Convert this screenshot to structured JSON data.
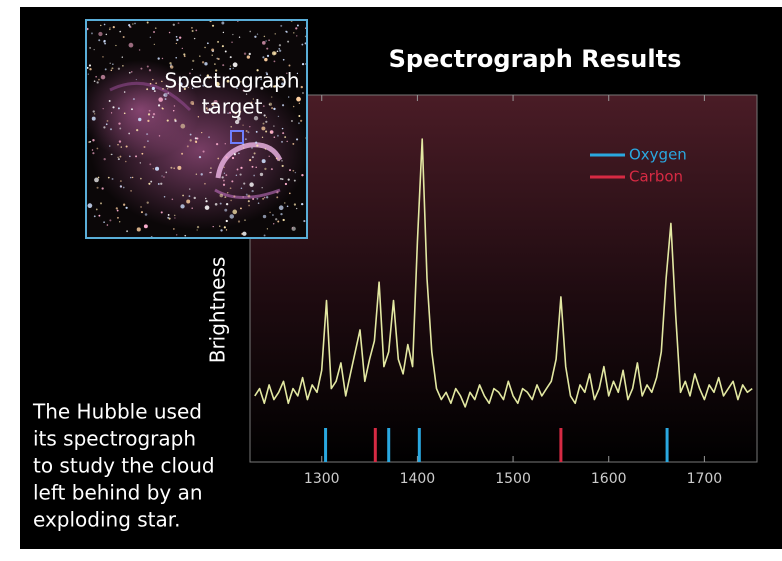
{
  "chart_data": {
    "type": "line",
    "title": "Spectrograph Results",
    "y_label": "Brightness",
    "inset_label": [
      "Spectrograph",
      "target"
    ],
    "caption": [
      "The Hubble used",
      "its spectrograph",
      "to study the cloud",
      "left behind by an",
      "exploding star."
    ],
    "xlim": [
      1225,
      1755
    ],
    "xticks": [
      1300,
      1400,
      1500,
      1600,
      1700
    ],
    "ylim": [
      0,
      100
    ],
    "series": [
      {
        "color": "#e3e8a2",
        "x": [
          1230,
          1235,
          1240,
          1245,
          1250,
          1255,
          1260,
          1265,
          1270,
          1275,
          1280,
          1285,
          1290,
          1295,
          1300,
          1305,
          1310,
          1315,
          1320,
          1325,
          1330,
          1335,
          1340,
          1345,
          1350,
          1355,
          1360,
          1365,
          1370,
          1375,
          1380,
          1385,
          1390,
          1395,
          1400,
          1405,
          1410,
          1415,
          1420,
          1425,
          1430,
          1435,
          1440,
          1445,
          1450,
          1455,
          1460,
          1465,
          1470,
          1475,
          1480,
          1485,
          1490,
          1495,
          1500,
          1505,
          1510,
          1515,
          1520,
          1525,
          1530,
          1535,
          1540,
          1545,
          1550,
          1555,
          1560,
          1565,
          1570,
          1575,
          1580,
          1585,
          1590,
          1595,
          1600,
          1605,
          1610,
          1615,
          1620,
          1625,
          1630,
          1635,
          1640,
          1645,
          1650,
          1655,
          1660,
          1665,
          1670,
          1675,
          1680,
          1685,
          1690,
          1695,
          1700,
          1705,
          1710,
          1715,
          1720,
          1725,
          1730,
          1735,
          1740,
          1745,
          1750
        ],
        "values": [
          18,
          20,
          16,
          21,
          17,
          19,
          22,
          16,
          20,
          18,
          23,
          17,
          21,
          19,
          25,
          44,
          20,
          22,
          27,
          18,
          24,
          30,
          36,
          22,
          28,
          33,
          49,
          26,
          30,
          44,
          28,
          24,
          32,
          26,
          60,
          88,
          50,
          30,
          20,
          17,
          19,
          16,
          20,
          18,
          15,
          19,
          17,
          21,
          18,
          16,
          20,
          19,
          17,
          22,
          18,
          16,
          20,
          19,
          17,
          21,
          18,
          20,
          22,
          28,
          45,
          26,
          18,
          16,
          21,
          19,
          24,
          17,
          20,
          26,
          18,
          22,
          19,
          25,
          17,
          20,
          27,
          18,
          21,
          19,
          23,
          30,
          50,
          65,
          40,
          19,
          22,
          18,
          24,
          20,
          17,
          21,
          19,
          23,
          18,
          20,
          22,
          17,
          21,
          19,
          20
        ]
      }
    ],
    "markers": [
      {
        "name": "Oxygen",
        "color": "#2aa8e0",
        "x": [
          1304,
          1370,
          1402,
          1661
        ]
      },
      {
        "name": "Carbon",
        "color": "#d62a43",
        "x": [
          1356,
          1550
        ]
      }
    ]
  }
}
